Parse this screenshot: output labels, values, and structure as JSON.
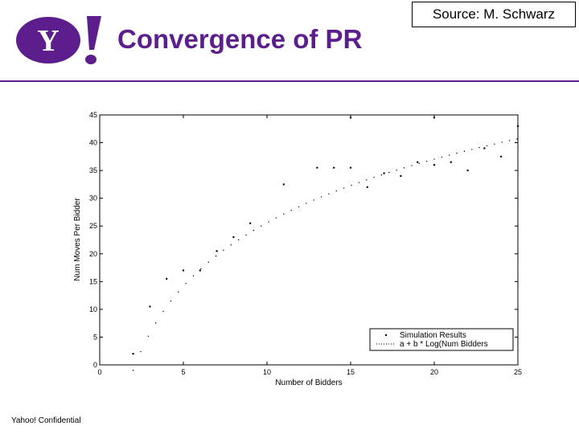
{
  "header": {
    "logo_text": "Y!",
    "title": "Convergence of PR",
    "source": "Source: M. Schwarz"
  },
  "footer": {
    "text": "Yahoo! Confidential"
  },
  "colors": {
    "brand_purple": "#5b1e8c"
  },
  "chart_data": {
    "type": "scatter",
    "xlabel": "Number of Bidders",
    "ylabel": "Num Moves Per Bidder",
    "xlim": [
      0,
      25
    ],
    "ylim": [
      0,
      45
    ],
    "xticks": [
      0,
      5,
      10,
      15,
      20,
      25
    ],
    "yticks": [
      0,
      5,
      10,
      15,
      20,
      25,
      30,
      35,
      40,
      45
    ],
    "grid": false,
    "legend_position": "bottom-right",
    "series": [
      {
        "name": "Simulation Results",
        "marker": "dot",
        "points": [
          [
            2,
            2
          ],
          [
            3,
            10.5
          ],
          [
            4,
            15.5
          ],
          [
            5,
            17
          ],
          [
            6,
            17
          ],
          [
            7,
            20.5
          ],
          [
            8,
            23
          ],
          [
            9,
            25.5
          ],
          [
            11,
            32.5
          ],
          [
            13,
            35.5
          ],
          [
            14,
            35.5
          ],
          [
            15,
            35.5
          ],
          [
            15,
            44.5
          ],
          [
            16,
            32
          ],
          [
            17,
            34.5
          ],
          [
            18,
            34
          ],
          [
            19,
            36.5
          ],
          [
            20,
            36
          ],
          [
            20,
            44.5
          ],
          [
            21,
            36.5
          ],
          [
            22,
            35
          ],
          [
            23,
            39
          ],
          [
            24,
            37.5
          ],
          [
            25,
            43
          ]
        ]
      },
      {
        "name": "a + b * Log(Num Bidders",
        "marker": "line-dotted",
        "curve": {
          "x_start": 2,
          "x_end": 25,
          "a": -12.4,
          "b": 16.5,
          "log": "natural"
        }
      }
    ]
  }
}
